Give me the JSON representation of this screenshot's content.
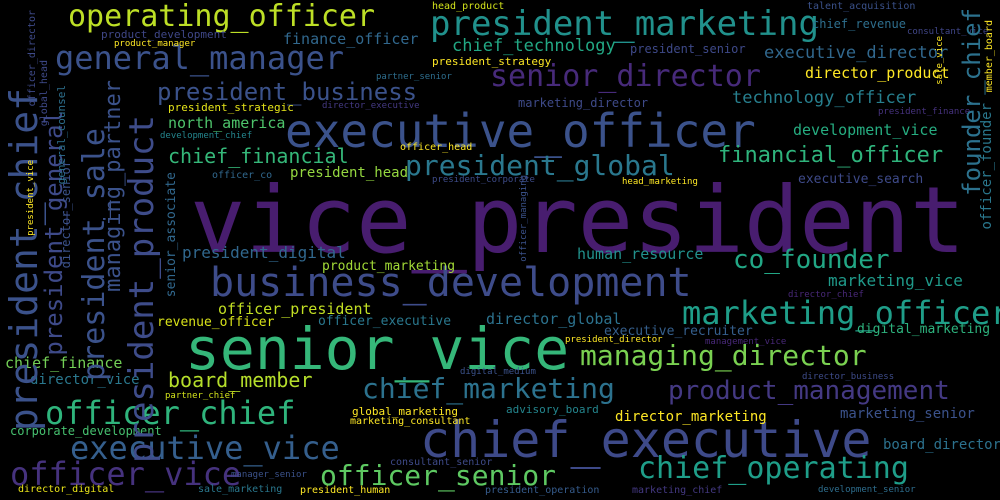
{
  "words": [
    {
      "text": "vice_president",
      "color": "#481d6f"
    },
    {
      "text": "senior_vice",
      "color": "#35b779"
    },
    {
      "text": "chief_executive",
      "color": "#3e4a89"
    },
    {
      "text": "executive_officer",
      "color": "#3b528b"
    },
    {
      "text": "business_development",
      "color": "#3e4c8a"
    },
    {
      "text": "president_marketing",
      "color": "#21918c"
    },
    {
      "text": "operating_officer",
      "color": "#bddf26"
    },
    {
      "text": "general_manager",
      "color": "#3b528b"
    },
    {
      "text": "senior_director",
      "color": "#472a7a"
    },
    {
      "text": "president_business",
      "color": "#3b528b"
    },
    {
      "text": "president_global",
      "color": "#2a788e"
    },
    {
      "text": "chief_financial",
      "color": "#35b779"
    },
    {
      "text": "financial_officer",
      "color": "#2fb47c"
    },
    {
      "text": "co_founder",
      "color": "#22a785"
    },
    {
      "text": "marketing_officer",
      "color": "#1f9e89"
    },
    {
      "text": "managing_director",
      "color": "#7ad151"
    },
    {
      "text": "chief_marketing",
      "color": "#2c728e"
    },
    {
      "text": "product_management",
      "color": "#443983"
    },
    {
      "text": "officer_chief",
      "color": "#2fb47c"
    },
    {
      "text": "executive_vice",
      "color": "#355f8d"
    },
    {
      "text": "officer_vice",
      "color": "#46327e"
    },
    {
      "text": "officer_senior",
      "color": "#5ec962"
    },
    {
      "text": "chief_operating",
      "color": "#1f9e89"
    },
    {
      "text": "board_member",
      "color": "#b5de2b"
    },
    {
      "text": "chief_technology",
      "color": "#22a884"
    },
    {
      "text": "finance_officer",
      "color": "#31688e"
    },
    {
      "text": "executive_director",
      "color": "#31688e"
    },
    {
      "text": "director_product",
      "color": "#fde725"
    },
    {
      "text": "technology_officer",
      "color": "#277f8e"
    },
    {
      "text": "development_vice",
      "color": "#26ad81"
    },
    {
      "text": "north_america",
      "color": "#4ec36b"
    },
    {
      "text": "human_resource",
      "color": "#21918c"
    },
    {
      "text": "marketing_vice",
      "color": "#1f9a8a"
    },
    {
      "text": "president_digital",
      "color": "#31688e"
    },
    {
      "text": "officer_president",
      "color": "#c2df23"
    },
    {
      "text": "officer_executive",
      "color": "#2a788e"
    },
    {
      "text": "director_global",
      "color": "#2c728e"
    },
    {
      "text": "executive_recruiter",
      "color": "#355f8d"
    },
    {
      "text": "digital_marketing",
      "color": "#2db27d"
    },
    {
      "text": "revenue_officer",
      "color": "#d8e219"
    },
    {
      "text": "chief_finance",
      "color": "#73d056"
    },
    {
      "text": "director_vice",
      "color": "#2a788e"
    },
    {
      "text": "corporate_development",
      "color": "#46c06f"
    },
    {
      "text": "director_marketing",
      "color": "#fde725"
    },
    {
      "text": "marketing_senior",
      "color": "#3b528b"
    },
    {
      "text": "board_director",
      "color": "#2c728e"
    },
    {
      "text": "executive_search",
      "color": "#3e4a89"
    },
    {
      "text": "president_head",
      "color": "#95d840"
    },
    {
      "text": "product_marketing",
      "color": "#a2da37"
    },
    {
      "text": "president_strategy",
      "color": "#fde725"
    },
    {
      "text": "president_senior",
      "color": "#3e4989"
    },
    {
      "text": "chief_revenue",
      "color": "#2e6f8e"
    },
    {
      "text": "head_product",
      "color": "#d2e21b"
    },
    {
      "text": "talent_acquisition",
      "color": "#3b528b"
    },
    {
      "text": "product_development",
      "color": "#3f4788"
    },
    {
      "text": "product_manager",
      "color": "#fde725"
    },
    {
      "text": "partner_senior",
      "color": "#2e6e8e"
    },
    {
      "text": "president_strategic",
      "color": "#e5e419"
    },
    {
      "text": "director_executive",
      "color": "#443983"
    },
    {
      "text": "marketing_director",
      "color": "#3e4a89"
    },
    {
      "text": "development_chief",
      "color": "#24868e"
    },
    {
      "text": "officer_head",
      "color": "#fde725"
    },
    {
      "text": "officer_co",
      "color": "#31688e"
    },
    {
      "text": "president_corporate",
      "color": "#3e4c8a"
    },
    {
      "text": "head_marketing",
      "color": "#fde725"
    },
    {
      "text": "president_finance",
      "color": "#46327e"
    },
    {
      "text": "director_chief",
      "color": "#482878"
    },
    {
      "text": "president_director",
      "color": "#fde725"
    },
    {
      "text": "management_vice",
      "color": "#482878"
    },
    {
      "text": "digital_medium",
      "color": "#3b528b"
    },
    {
      "text": "director_business",
      "color": "#3e4c8a"
    },
    {
      "text": "consultant_vice",
      "color": "#404688"
    },
    {
      "text": "partner_chief",
      "color": "#d2e21b"
    },
    {
      "text": "global_marketing",
      "color": "#fde725"
    },
    {
      "text": "advisory_board",
      "color": "#24868e"
    },
    {
      "text": "marketing_consultant",
      "color": "#fde725"
    },
    {
      "text": "consultant_senior",
      "color": "#3e4a89"
    },
    {
      "text": "manager_senior",
      "color": "#3b528b"
    },
    {
      "text": "director_digital",
      "color": "#eae51a"
    },
    {
      "text": "sale_marketing",
      "color": "#2a788e"
    },
    {
      "text": "president_human",
      "color": "#fde725"
    },
    {
      "text": "president_operation",
      "color": "#365c8d"
    },
    {
      "text": "marketing_chief",
      "color": "#443983"
    },
    {
      "text": "development_senior",
      "color": "#2e6e8e"
    },
    {
      "text": "sale_vice",
      "color": "#fde725"
    },
    {
      "text": "member_board",
      "color": "#fde725"
    },
    {
      "text": "president_chief",
      "color": "#3b528b"
    },
    {
      "text": "president_general",
      "color": "#3e4a89"
    },
    {
      "text": "president_sale",
      "color": "#3b528b"
    },
    {
      "text": "managing_partner",
      "color": "#3b528b"
    },
    {
      "text": "president_product",
      "color": "#3e4c8a"
    },
    {
      "text": "senior_associate",
      "color": "#31688e"
    },
    {
      "text": "founder_chief",
      "color": "#2c728e"
    },
    {
      "text": "officer_founder",
      "color": "#2a788e"
    },
    {
      "text": "director_senior",
      "color": "#3b528b"
    },
    {
      "text": "general_counsel",
      "color": "#2d708e"
    },
    {
      "text": "global_head",
      "color": "#3e4989"
    },
    {
      "text": "officer_director",
      "color": "#3e4a89"
    },
    {
      "text": "president_vice",
      "color": "#fde725"
    },
    {
      "text": "officer_managing",
      "color": "#3b528b"
    }
  ]
}
